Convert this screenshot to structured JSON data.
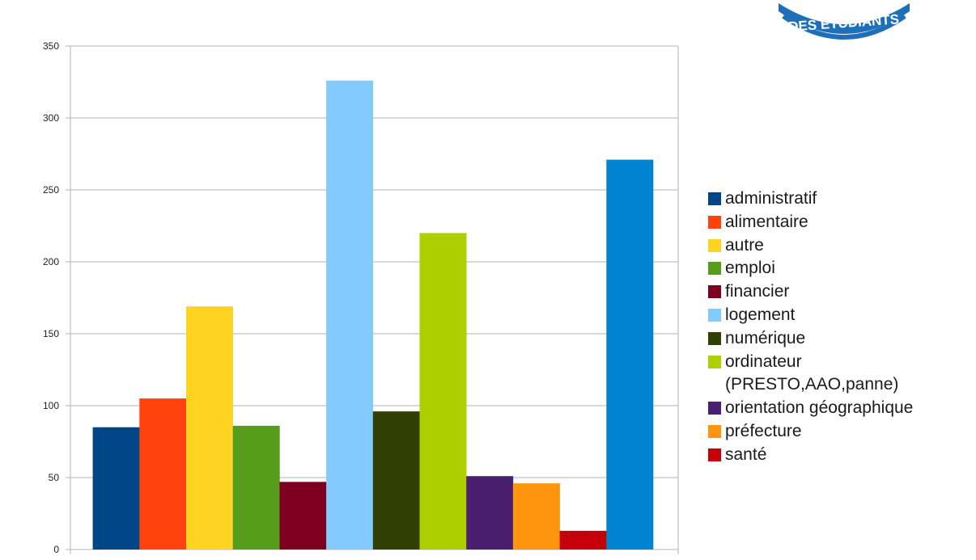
{
  "logo": {
    "text": "DES ÉTUDIANTS",
    "color": "#1f6fb8"
  },
  "chart_data": {
    "type": "bar",
    "title": "",
    "xlabel": "",
    "ylabel": "",
    "ylim": [
      0,
      350
    ],
    "yticks": [
      0,
      50,
      100,
      150,
      200,
      250,
      300,
      350
    ],
    "grid": true,
    "legend_position": "right",
    "series": [
      {
        "name": "administratif",
        "value": 85,
        "color": "#004586"
      },
      {
        "name": "alimentaire",
        "value": 105,
        "color": "#ff420e"
      },
      {
        "name": "autre",
        "value": 169,
        "color": "#ffd320"
      },
      {
        "name": "emploi",
        "value": 86,
        "color": "#579d1c"
      },
      {
        "name": "financier",
        "value": 47,
        "color": "#7e0021"
      },
      {
        "name": "logement",
        "value": 326,
        "color": "#83caff"
      },
      {
        "name": "numérique",
        "value": 96,
        "color": "#314004"
      },
      {
        "name": "ordinateur\n(PRESTO,AAO,panne)",
        "value": 220,
        "color": "#aecf00"
      },
      {
        "name": "orientation géographique",
        "value": 51,
        "color": "#4b1f6f"
      },
      {
        "name": "préfecture",
        "value": 46,
        "color": "#ff950e"
      },
      {
        "name": "santé",
        "value": 13,
        "color": "#c5000b"
      },
      {
        "value": 271,
        "color": "#0084d1"
      }
    ]
  }
}
